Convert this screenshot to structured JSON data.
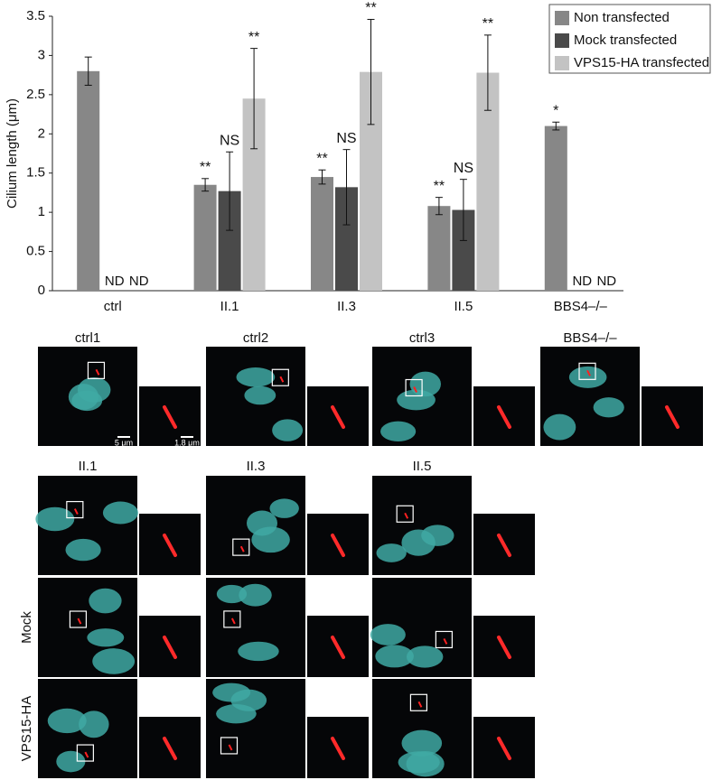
{
  "chart_data": {
    "type": "bar",
    "ylabel": "Cilium length (μm)",
    "categories": [
      "ctrl",
      "II.1",
      "II.3",
      "II.5",
      "BBS4–/–"
    ],
    "series": [
      {
        "name": "Non transfected",
        "color": "#878787",
        "values": [
          2.8,
          1.35,
          1.45,
          1.08,
          2.1
        ],
        "errors": [
          0.18,
          0.08,
          0.09,
          0.11,
          0.05
        ],
        "annotations": [
          null,
          "**",
          "**",
          "**",
          "*"
        ]
      },
      {
        "name": "Mock transfected",
        "color": "#4a4a4a",
        "values": [
          null,
          1.27,
          1.32,
          1.03,
          null
        ],
        "errors": [
          null,
          0.5,
          0.48,
          0.39,
          null
        ],
        "annotations": [
          "ND",
          "NS",
          "NS",
          "NS",
          "ND"
        ]
      },
      {
        "name": "VPS15-HA transfected",
        "color": "#c3c3c3",
        "values": [
          null,
          2.45,
          2.79,
          2.78,
          null
        ],
        "errors": [
          null,
          0.64,
          0.67,
          0.48,
          null
        ],
        "annotations": [
          "ND",
          "**",
          "**",
          "**",
          "ND"
        ]
      }
    ],
    "ylim": [
      0,
      3.5
    ],
    "yticks": [
      0,
      0.5,
      1,
      1.5,
      2,
      2.5,
      3,
      3.5
    ],
    "legend": "upper right"
  },
  "panels": {
    "top_labels": [
      "ctrl1",
      "ctrl2",
      "ctrl3",
      "BBS4–/–"
    ],
    "column_labels": [
      "II.1",
      "II.3",
      "II.5"
    ],
    "row_labels": [
      "Mock",
      "VPS15-HA"
    ],
    "scale_bars": [
      "5 μm",
      "1.8 μm"
    ]
  }
}
